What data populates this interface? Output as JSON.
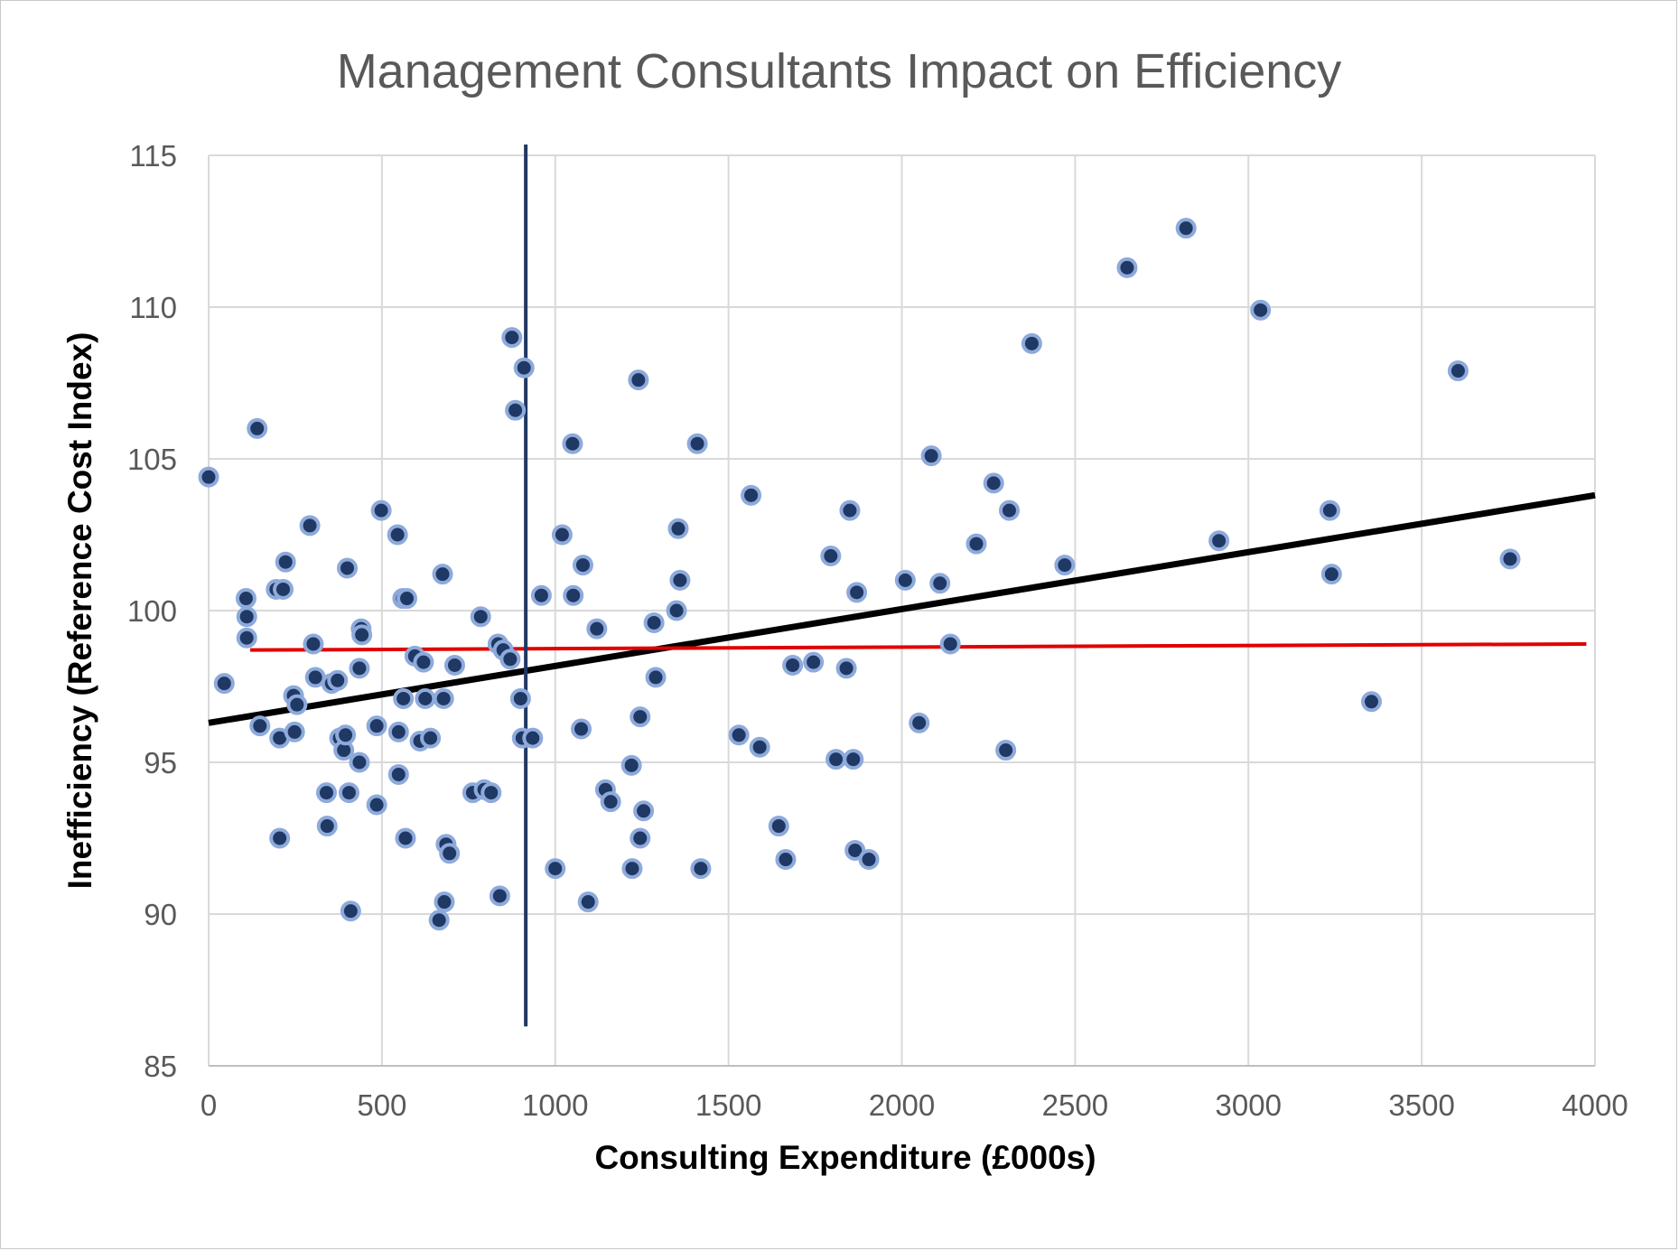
{
  "chart_data": {
    "type": "scatter",
    "title": "Management Consultants Impact on Efficiency",
    "xlabel": "Consulting Expenditure (£000s)",
    "ylabel": "Inefficiency (Reference Cost Index)",
    "xlim": [
      0,
      4000
    ],
    "ylim": [
      85,
      115
    ],
    "xticks": [
      0,
      500,
      1000,
      1500,
      2000,
      2500,
      3000,
      3500,
      4000
    ],
    "yticks": [
      85,
      90,
      95,
      100,
      105,
      110,
      115
    ],
    "grid": true,
    "legend": "none",
    "colors": {
      "points": "#1f3864",
      "point_edge": "#8eaadb",
      "trend_line": "#000000",
      "flat_line": "#e00000",
      "vertical_line": "#203864"
    },
    "points": [
      [
        0,
        104.4
      ],
      [
        45,
        97.6
      ],
      [
        108,
        100.4
      ],
      [
        110,
        99.8
      ],
      [
        110,
        99.1
      ],
      [
        140,
        106
      ],
      [
        148,
        96.2
      ],
      [
        195,
        100.7
      ],
      [
        205,
        95.8
      ],
      [
        205,
        92.5
      ],
      [
        215,
        100.7
      ],
      [
        222,
        101.6
      ],
      [
        245,
        97.2
      ],
      [
        248,
        96
      ],
      [
        255,
        96.9
      ],
      [
        292,
        102.8
      ],
      [
        302,
        98.9
      ],
      [
        308,
        97.8
      ],
      [
        340,
        94
      ],
      [
        342,
        92.9
      ],
      [
        355,
        97.6
      ],
      [
        372,
        97.7
      ],
      [
        378,
        95.8
      ],
      [
        390,
        95.4
      ],
      [
        395,
        95.9
      ],
      [
        400,
        101.4
      ],
      [
        405,
        94
      ],
      [
        410,
        90.1
      ],
      [
        435,
        98.1
      ],
      [
        435,
        95
      ],
      [
        440,
        99.4
      ],
      [
        442,
        99.2
      ],
      [
        485,
        96.2
      ],
      [
        485,
        93.6
      ],
      [
        498,
        103.3
      ],
      [
        545,
        102.5
      ],
      [
        548,
        94.6
      ],
      [
        548,
        96
      ],
      [
        560,
        100.4
      ],
      [
        562,
        97.1
      ],
      [
        568,
        92.5
      ],
      [
        572,
        100.4
      ],
      [
        595,
        98.5
      ],
      [
        610,
        95.7
      ],
      [
        620,
        98.3
      ],
      [
        625,
        97.1
      ],
      [
        640,
        95.8
      ],
      [
        665,
        89.8
      ],
      [
        675,
        101.2
      ],
      [
        678,
        97.1
      ],
      [
        680,
        90.4
      ],
      [
        685,
        92.3
      ],
      [
        695,
        92
      ],
      [
        710,
        98.2
      ],
      [
        762,
        94
      ],
      [
        785,
        99.8
      ],
      [
        795,
        94.1
      ],
      [
        815,
        94
      ],
      [
        835,
        98.9
      ],
      [
        840,
        90.6
      ],
      [
        850,
        98.7
      ],
      [
        870,
        98.4
      ],
      [
        875,
        109
      ],
      [
        885,
        106.6
      ],
      [
        900,
        97.1
      ],
      [
        905,
        95.8
      ],
      [
        910,
        108
      ],
      [
        935,
        95.8
      ],
      [
        960,
        100.5
      ],
      [
        1000,
        91.5
      ],
      [
        1020,
        102.5
      ],
      [
        1050,
        105.5
      ],
      [
        1052,
        100.5
      ],
      [
        1075,
        96.1
      ],
      [
        1080,
        101.5
      ],
      [
        1095,
        90.4
      ],
      [
        1120,
        99.4
      ],
      [
        1145,
        94.1
      ],
      [
        1160,
        93.7
      ],
      [
        1220,
        94.9
      ],
      [
        1222,
        91.5
      ],
      [
        1240,
        107.6
      ],
      [
        1245,
        96.5
      ],
      [
        1245,
        92.5
      ],
      [
        1255,
        93.4
      ],
      [
        1285,
        99.6
      ],
      [
        1290,
        97.8
      ],
      [
        1350,
        100
      ],
      [
        1355,
        102.7
      ],
      [
        1360,
        101
      ],
      [
        1410,
        105.5
      ],
      [
        1420,
        91.5
      ],
      [
        1530,
        95.9
      ],
      [
        1565,
        103.8
      ],
      [
        1590,
        95.5
      ],
      [
        1645,
        92.9
      ],
      [
        1665,
        91.8
      ],
      [
        1685,
        98.2
      ],
      [
        1745,
        98.3
      ],
      [
        1795,
        101.8
      ],
      [
        1810,
        95.1
      ],
      [
        1840,
        98.1
      ],
      [
        1850,
        103.3
      ],
      [
        1860,
        95.1
      ],
      [
        1865,
        92.1
      ],
      [
        1870,
        100.6
      ],
      [
        1905,
        91.8
      ],
      [
        2010,
        101
      ],
      [
        2050,
        96.3
      ],
      [
        2085,
        105.1
      ],
      [
        2110,
        100.9
      ],
      [
        2140,
        98.9
      ],
      [
        2215,
        102.2
      ],
      [
        2265,
        104.2
      ],
      [
        2300,
        95.4
      ],
      [
        2310,
        103.3
      ],
      [
        2375,
        108.8
      ],
      [
        2470,
        101.5
      ],
      [
        2650,
        111.3
      ],
      [
        2820,
        112.6
      ],
      [
        2915,
        102.3
      ],
      [
        3035,
        109.9
      ],
      [
        3235,
        103.3
      ],
      [
        3240,
        101.2
      ],
      [
        3355,
        97
      ],
      [
        3605,
        107.9
      ],
      [
        3755,
        101.7
      ]
    ],
    "trend_line": {
      "x": [
        0,
        4000
      ],
      "y": [
        96.3,
        103.8
      ]
    },
    "flat_line": {
      "x": [
        120,
        3975
      ],
      "y": [
        98.7,
        98.9
      ]
    },
    "vertical_line": {
      "x": 915,
      "y": [
        86.3,
        115
      ]
    }
  }
}
